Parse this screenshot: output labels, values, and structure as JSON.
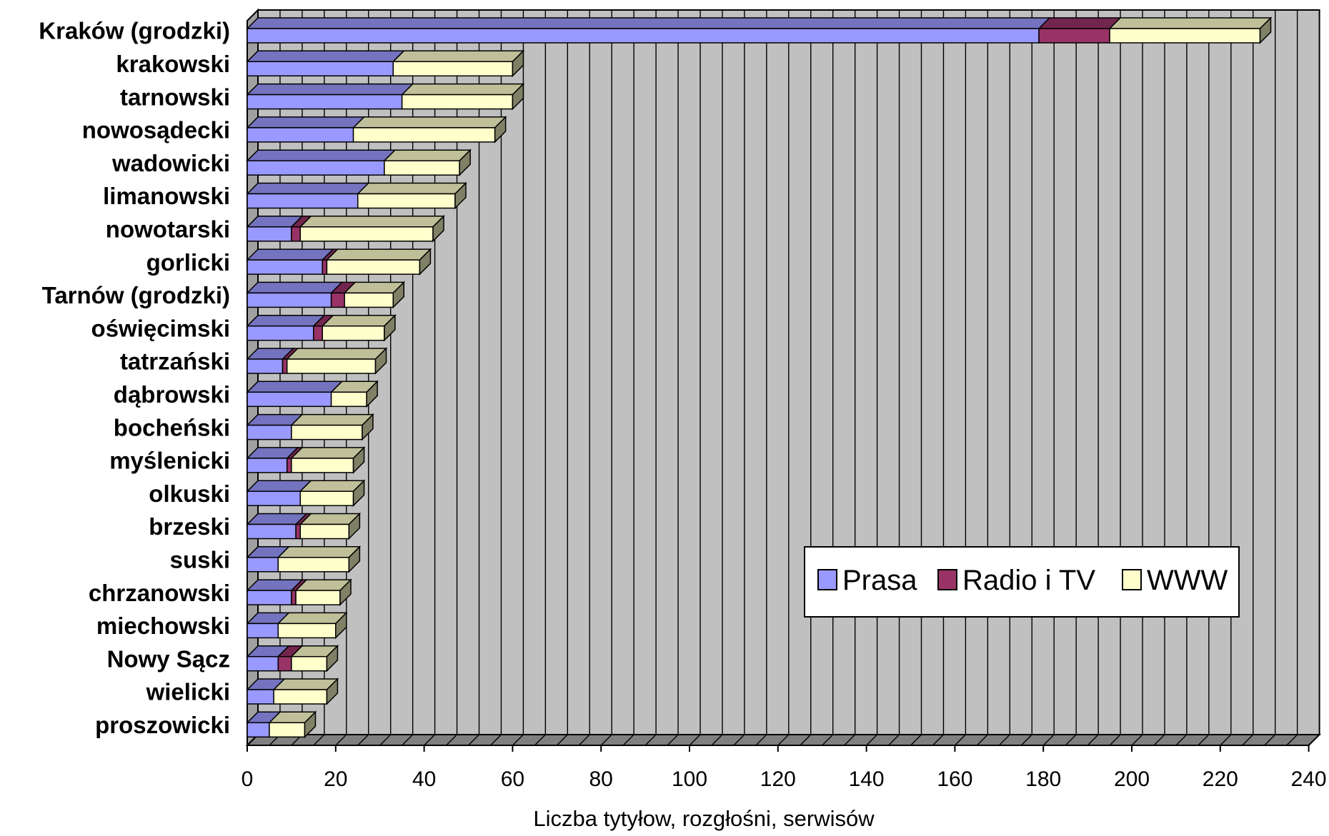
{
  "chart_data": {
    "type": "bar",
    "orientation": "horizontal",
    "stacked": true,
    "three_d": true,
    "categories": [
      "Kraków (grodzki)",
      "krakowski",
      "tarnowski",
      "nowosądecki",
      "wadowicki",
      "limanowski",
      "nowotarski",
      "gorlicki",
      "Tarnów (grodzki)",
      "oświęcimski",
      "tatrzański",
      "dąbrowski",
      "bocheński",
      "myślenicki",
      "olkuski",
      "brzeski",
      "suski",
      "chrzanowski",
      "miechowski",
      "Nowy Sącz",
      "wielicki",
      "proszowicki"
    ],
    "series": [
      {
        "name": "Prasa",
        "color": "#9999ff",
        "values": [
          179,
          33,
          35,
          24,
          31,
          25,
          10,
          17,
          19,
          15,
          8,
          19,
          10,
          9,
          12,
          11,
          7,
          10,
          7,
          7,
          6,
          5
        ]
      },
      {
        "name": "Radio i TV",
        "color": "#993366",
        "values": [
          16,
          0,
          0,
          0,
          0,
          0,
          2,
          1,
          3,
          2,
          1,
          0,
          0,
          1,
          0,
          1,
          0,
          1,
          0,
          3,
          0,
          0
        ]
      },
      {
        "name": "WWW",
        "color": "#ffffcc",
        "values": [
          34,
          27,
          25,
          32,
          17,
          22,
          30,
          21,
          11,
          14,
          20,
          8,
          16,
          14,
          12,
          11,
          16,
          10,
          13,
          8,
          12,
          8
        ]
      }
    ],
    "xlabel": "Liczba tytyłow, rozgłośni, serwisów",
    "ylabel": "",
    "xlim": [
      0,
      240
    ],
    "xticks": [
      "0",
      "20",
      "40",
      "60",
      "80",
      "100",
      "120",
      "140",
      "160",
      "180",
      "200",
      "220",
      "240"
    ],
    "grid": true,
    "legend_position": "lower-right"
  }
}
